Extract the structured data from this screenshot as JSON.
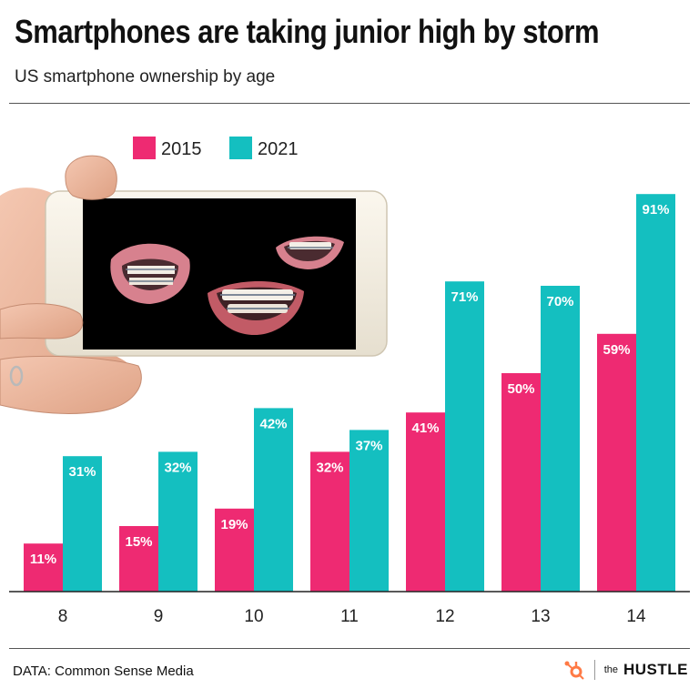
{
  "header": {
    "title": "Smartphones are taking junior high by storm",
    "subtitle": "US smartphone ownership by age"
  },
  "footer": {
    "source": "DATA: Common Sense Media",
    "brand_prefix": "the",
    "brand_name": "HUSTLE"
  },
  "colors": {
    "series_2015": "#ee2a72",
    "series_2021": "#14bfc0"
  },
  "chart_data": {
    "type": "bar",
    "title": "Smartphones are taking junior high by storm",
    "subtitle": "US smartphone ownership by age",
    "xlabel": "",
    "ylabel": "",
    "ylim": [
      0,
      100
    ],
    "categories": [
      "8",
      "9",
      "10",
      "11",
      "12",
      "13",
      "14"
    ],
    "series": [
      {
        "name": "2015",
        "values": [
          11,
          15,
          19,
          32,
          41,
          50,
          59
        ],
        "labels": [
          "11%",
          "15%",
          "19%",
          "32%",
          "41%",
          "50%",
          "59%"
        ]
      },
      {
        "name": "2021",
        "values": [
          31,
          32,
          42,
          37,
          71,
          70,
          91
        ],
        "labels": [
          "31%",
          "32%",
          "42%",
          "37%",
          "71%",
          "70%",
          "91%"
        ]
      }
    ],
    "legend_position": "top-left",
    "grid": false,
    "illustration": "hand-holding-phone-with-braces"
  }
}
